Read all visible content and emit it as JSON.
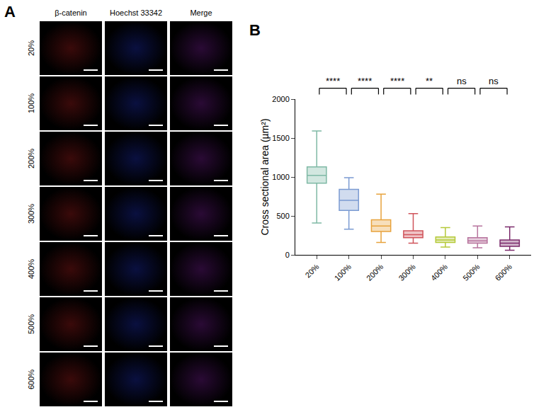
{
  "image_panel": {
    "letter": "A",
    "columns": [
      "β-catenin",
      "Hoechst 33342",
      "Merge"
    ],
    "rows": [
      "20%",
      "100%",
      "200%",
      "300%",
      "400%",
      "500%",
      "600%"
    ]
  },
  "chart_data": {
    "type": "box",
    "letter": "B",
    "y_label": "Cross sectional area (µm²)",
    "categories": [
      "20%",
      "100%",
      "200%",
      "300%",
      "400%",
      "500%",
      "600%"
    ],
    "series": [
      {
        "name": "20%",
        "color": "#7fb9a5",
        "min": 410,
        "q1": 920,
        "median": 1020,
        "q3": 1130,
        "max": 1590
      },
      {
        "name": "100%",
        "color": "#7b9bd2",
        "min": 330,
        "q1": 570,
        "median": 700,
        "q3": 840,
        "max": 990
      },
      {
        "name": "200%",
        "color": "#e8a33d",
        "min": 160,
        "q1": 300,
        "median": 370,
        "q3": 450,
        "max": 780
      },
      {
        "name": "300%",
        "color": "#d0545b",
        "min": 150,
        "q1": 220,
        "median": 260,
        "q3": 310,
        "max": 530
      },
      {
        "name": "400%",
        "color": "#b5c939",
        "min": 100,
        "q1": 160,
        "median": 190,
        "q3": 230,
        "max": 350
      },
      {
        "name": "500%",
        "color": "#b7739d",
        "min": 90,
        "q1": 150,
        "median": 180,
        "q3": 220,
        "max": 370
      },
      {
        "name": "600%",
        "color": "#7b2a6b",
        "min": 60,
        "q1": 110,
        "median": 150,
        "q3": 190,
        "max": 360
      }
    ],
    "comparisons": [
      {
        "groups": [
          "20%",
          "100%"
        ],
        "label": "****"
      },
      {
        "groups": [
          "100%",
          "200%"
        ],
        "label": "****"
      },
      {
        "groups": [
          "200%",
          "300%"
        ],
        "label": "****"
      },
      {
        "groups": [
          "300%",
          "400%"
        ],
        "label": "**"
      },
      {
        "groups": [
          "400%",
          "500%"
        ],
        "label": "ns"
      },
      {
        "groups": [
          "500%",
          "600%"
        ],
        "label": "ns"
      }
    ],
    "ylim": [
      0,
      2000
    ],
    "yticks": [
      0,
      500,
      1000,
      1500,
      2000
    ],
    "grid": false
  }
}
